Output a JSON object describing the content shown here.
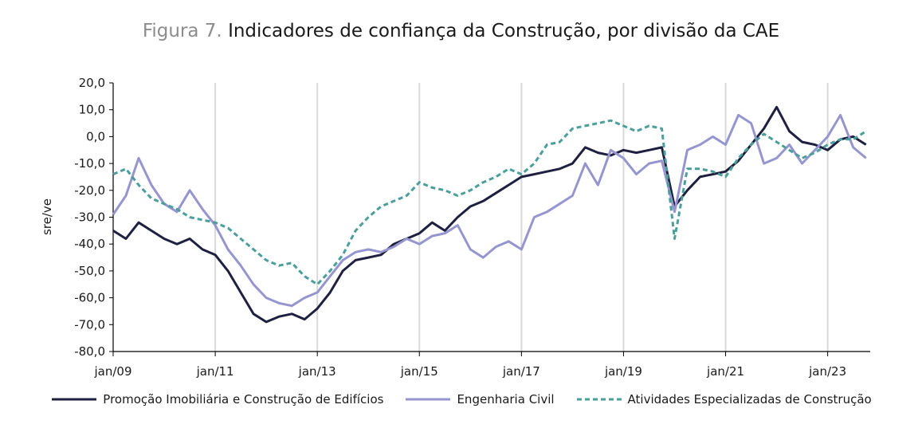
{
  "title": {
    "prefix": "Figura 7.",
    "main": "Indicadores de confiança da Construção, por divisão da CAE"
  },
  "chart_data": {
    "type": "line",
    "ylabel": "sre/ve",
    "xlabel": "",
    "ylim": [
      -80,
      20
    ],
    "yticks": [
      "20,0",
      "10,0",
      "0,0",
      "-10,0",
      "-20,0",
      "-30,0",
      "-40,0",
      "-50,0",
      "-60,0",
      "-70,0",
      "-80,0"
    ],
    "ytick_values": [
      20,
      10,
      0,
      -10,
      -20,
      -30,
      -40,
      -50,
      -60,
      -70,
      -80
    ],
    "xtick_labels": [
      "jan/09",
      "jan/11",
      "jan/13",
      "jan/15",
      "jan/17",
      "jan/19",
      "jan/21",
      "jan/23"
    ],
    "xtick_positions": [
      0,
      24,
      48,
      72,
      96,
      120,
      144,
      168
    ],
    "xlim": [
      0,
      178
    ],
    "grid": "vertical",
    "legend_placement": "bottom",
    "series": [
      {
        "name": "Promoção Imobiliária e Construção de Edifícios",
        "color": "#1f2040",
        "style": "solid",
        "x": [
          0,
          3,
          6,
          9,
          12,
          15,
          18,
          21,
          24,
          27,
          30,
          33,
          36,
          39,
          42,
          45,
          48,
          51,
          54,
          57,
          60,
          63,
          66,
          69,
          72,
          75,
          78,
          81,
          84,
          87,
          90,
          93,
          96,
          99,
          102,
          105,
          108,
          111,
          114,
          117,
          120,
          123,
          126,
          129,
          132,
          135,
          138,
          141,
          144,
          147,
          150,
          153,
          156,
          159,
          162,
          165,
          168,
          171,
          174,
          177
        ],
        "values": [
          -35,
          -38,
          -32,
          -35,
          -38,
          -40,
          -38,
          -42,
          -44,
          -50,
          -58,
          -66,
          -69,
          -67,
          -66,
          -68,
          -64,
          -58,
          -50,
          -46,
          -45,
          -44,
          -40,
          -38,
          -36,
          -32,
          -35,
          -30,
          -26,
          -24,
          -21,
          -18,
          -15,
          -14,
          -13,
          -12,
          -10,
          -4,
          -6,
          -7,
          -5,
          -6,
          -5,
          -4,
          -26,
          -20,
          -15,
          -14,
          -13,
          -9,
          -3,
          3,
          11,
          2,
          -2,
          -3,
          -5,
          -1,
          0,
          -3
        ]
      },
      {
        "name": "Engenharia Civil",
        "color": "#9695cf",
        "style": "solid",
        "x": [
          0,
          3,
          6,
          9,
          12,
          15,
          18,
          21,
          24,
          27,
          30,
          33,
          36,
          39,
          42,
          45,
          48,
          51,
          54,
          57,
          60,
          63,
          66,
          69,
          72,
          75,
          78,
          81,
          84,
          87,
          90,
          93,
          96,
          99,
          102,
          105,
          108,
          111,
          114,
          117,
          120,
          123,
          126,
          129,
          132,
          135,
          138,
          141,
          144,
          147,
          150,
          153,
          156,
          159,
          162,
          165,
          168,
          171,
          174,
          177
        ],
        "values": [
          -29,
          -22,
          -8,
          -18,
          -25,
          -28,
          -20,
          -27,
          -33,
          -42,
          -48,
          -55,
          -60,
          -62,
          -63,
          -60,
          -58,
          -52,
          -46,
          -43,
          -42,
          -43,
          -41,
          -38,
          -40,
          -37,
          -36,
          -33,
          -42,
          -45,
          -41,
          -39,
          -42,
          -30,
          -28,
          -25,
          -22,
          -10,
          -18,
          -5,
          -8,
          -14,
          -10,
          -9,
          -28,
          -5,
          -3,
          0,
          -3,
          8,
          5,
          -10,
          -8,
          -3,
          -10,
          -5,
          0,
          8,
          -4,
          -8
        ]
      },
      {
        "name": "Atividades Especializadas de Construção",
        "color": "#4a9e9b",
        "style": "dashed",
        "x": [
          0,
          3,
          6,
          9,
          12,
          15,
          18,
          21,
          24,
          27,
          30,
          33,
          36,
          39,
          42,
          45,
          48,
          51,
          54,
          57,
          60,
          63,
          66,
          69,
          72,
          75,
          78,
          81,
          84,
          87,
          90,
          93,
          96,
          99,
          102,
          105,
          108,
          111,
          114,
          117,
          120,
          123,
          126,
          129,
          132,
          135,
          138,
          141,
          144,
          147,
          150,
          153,
          156,
          159,
          162,
          165,
          168,
          171,
          174,
          177
        ],
        "values": [
          -14,
          -12,
          -18,
          -23,
          -25,
          -27,
          -30,
          -31,
          -32,
          -34,
          -38,
          -42,
          -46,
          -48,
          -47,
          -52,
          -55,
          -50,
          -44,
          -35,
          -30,
          -26,
          -24,
          -22,
          -17,
          -19,
          -20,
          -22,
          -20,
          -17,
          -15,
          -12,
          -14,
          -10,
          -3,
          -2,
          3,
          4,
          5,
          6,
          4,
          2,
          4,
          3,
          -38,
          -12,
          -12,
          -13,
          -15,
          -8,
          -3,
          1,
          -2,
          -5,
          -8,
          -6,
          -3,
          -1,
          -1,
          2
        ]
      }
    ]
  }
}
